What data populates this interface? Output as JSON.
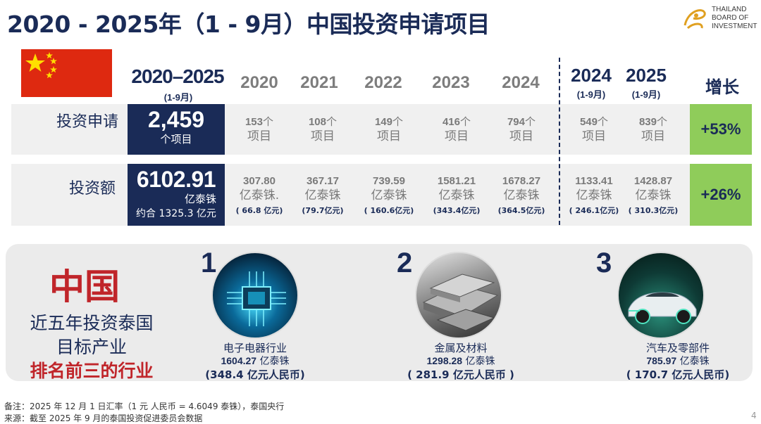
{
  "title": "2020 - 2025年（1 - 9月）中国投资申请项目",
  "logo": {
    "line1": "THAILAND",
    "line2": "BOARD OF",
    "line3": "INVESTMENT"
  },
  "columns": {
    "main": "2020–2025",
    "main_sub": "(1-9月)",
    "y2020": "2020",
    "y2021": "2021",
    "y2022": "2022",
    "y2023": "2023",
    "y2024": "2024",
    "y2024p": "2024",
    "y2024p_sub": "(1-9月)",
    "y2025p": "2025",
    "y2025p_sub": "(1-9月)",
    "growth": "增长"
  },
  "applications": {
    "label": "投资申请",
    "main_value": "2,459",
    "main_unit": "个项目",
    "cells": [
      {
        "num": "153",
        "unit": "个",
        "line2": "项目"
      },
      {
        "num": "108",
        "unit": "个",
        "line2": "项目"
      },
      {
        "num": "149",
        "unit": "个",
        "line2": "项目"
      },
      {
        "num": "416",
        "unit": "个",
        "line2": "项目"
      },
      {
        "num": "794",
        "unit": "个",
        "line2": "项目"
      },
      {
        "num": "549",
        "unit": "个",
        "line2": "项目"
      },
      {
        "num": "839",
        "unit": "个",
        "line2": "项目"
      }
    ],
    "growth": "+53%"
  },
  "investment": {
    "label": "投资额",
    "main_value": "6102.91",
    "main_unit": "亿泰铢",
    "main_rmb": "约合 1325.3 亿元",
    "cells": [
      {
        "num": "307.80",
        "unit": "亿泰铢.",
        "rmb": "( 66.8 亿元)"
      },
      {
        "num": "367.17",
        "unit": "亿泰铢",
        "rmb": "(79.7亿元)"
      },
      {
        "num": "739.59",
        "unit": "亿泰铢",
        "rmb": "( 160.6亿元)"
      },
      {
        "num": "1581.21",
        "unit": "亿泰铢",
        "rmb": "(343.4亿元)"
      },
      {
        "num": "1678.27",
        "unit": "亿泰铢",
        "rmb": "(364.5亿元)"
      },
      {
        "num": "1133.41",
        "unit": "亿泰铢",
        "rmb": "( 246.1亿元)"
      },
      {
        "num": "1428.87",
        "unit": "亿泰铢",
        "rmb": "( 310.3亿元)"
      }
    ],
    "growth": "+26%"
  },
  "bottom": {
    "country": "中国",
    "line1": "近五年投资泰国",
    "line2": "目标产业",
    "line3": "排名前三的行业",
    "industries": [
      {
        "rank": "1",
        "name": "电子电器行业",
        "value": "1604.27",
        "unit": "亿泰铢",
        "rmb": "(348.4 亿元人民币)"
      },
      {
        "rank": "2",
        "name": "金属及材料",
        "value": "1298.28",
        "unit": "亿泰铢",
        "rmb": "( 281.9 亿元人民币 )"
      },
      {
        "rank": "3",
        "name": "汽车及零部件",
        "value": "785.97",
        "unit": "亿泰铢",
        "rmb": "( 170.7 亿元人民币)"
      }
    ]
  },
  "notes": {
    "line1": "备注：2025 年 12 月 1 日汇率（1 元 人民币 = 4.6049 泰铢），泰国央行",
    "line2": "来源：截至 2025 年 9 月的泰国投资促进委员会数据"
  },
  "page_number": "4"
}
